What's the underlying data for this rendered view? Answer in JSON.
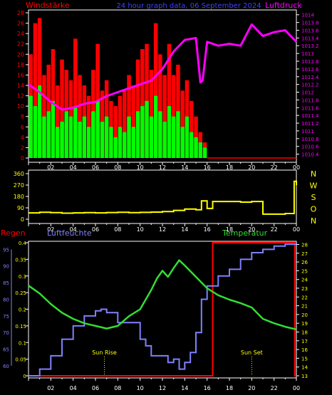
{
  "header": {
    "left": "Windstärke",
    "center": "24 hour graph data, 06 September 2024",
    "right": "Luftdruck"
  },
  "colors": {
    "wind_avg": "#00ff00",
    "wind_gust": "#ff0000",
    "pressure": "#ff00ff",
    "direction": "#ffff00",
    "rain": "#ff0000",
    "humidity": "#8080ff",
    "temperature": "#33dd33",
    "frame": "#ffffff",
    "compass": "#ffff00"
  },
  "x_ticks": [
    "02",
    "04",
    "06",
    "08",
    "10",
    "12",
    "14",
    "16",
    "18",
    "20",
    "22",
    "00"
  ],
  "chart_data": [
    {
      "type": "bar",
      "id": "wind_pressure",
      "title": "24 hour graph data, 06 September 2024",
      "ylabel_left": "Windstärke",
      "ylabel_right": "Luftdruck",
      "x_ticks": [
        "02",
        "04",
        "06",
        "08",
        "10",
        "12",
        "14",
        "16",
        "18",
        "20",
        "22",
        "00"
      ],
      "y_left_ticks": [
        "0",
        "2",
        "4",
        "6",
        "8",
        "10",
        "12",
        "14",
        "16",
        "18",
        "20",
        "22",
        "24",
        "26",
        "28"
      ],
      "ylim_left": [
        0,
        28
      ],
      "y_right_ticks": [
        "1010.4",
        "1010.6",
        "1010.8",
        "1011",
        "1011.2",
        "1011.4",
        "1011.6",
        "1011.8",
        "1012",
        "1012.2",
        "1012.4",
        "1012.6",
        "1012.8",
        "1013",
        "1013.2",
        "1013.4",
        "1013.6",
        "1013.8",
        "1014"
      ],
      "ylim_right": [
        1010.3,
        1014.05
      ],
      "series": [
        {
          "name": "Windstärke",
          "kind": "wind_avg",
          "x": [
            0.2,
            0.6,
            1.0,
            1.4,
            1.8,
            2.2,
            2.6,
            3.0,
            3.4,
            3.8,
            4.2,
            4.6,
            5.0,
            5.4,
            5.8,
            6.2,
            6.6,
            7.0,
            7.4,
            7.8,
            8.2,
            8.6,
            9.0,
            9.4,
            9.8,
            10.2,
            10.6,
            11.0,
            11.4,
            11.8,
            12.2,
            12.6,
            13.0,
            13.4,
            13.8,
            14.2,
            14.6,
            15.0,
            15.4,
            15.8
          ],
          "values": [
            12,
            10,
            14,
            8,
            9,
            11,
            6,
            7,
            9,
            8,
            10,
            7,
            8,
            6,
            9,
            11,
            7,
            8,
            6,
            4,
            6,
            5,
            8,
            6,
            9,
            10,
            11,
            8,
            12,
            9,
            7,
            10,
            8,
            9,
            6,
            8,
            5,
            4,
            3,
            2
          ]
        },
        {
          "name": "Böen",
          "kind": "wind_gust",
          "x": [
            0.2,
            0.6,
            1.0,
            1.4,
            1.8,
            2.2,
            2.6,
            3.0,
            3.4,
            3.8,
            4.2,
            4.6,
            5.0,
            5.4,
            5.8,
            6.2,
            6.6,
            7.0,
            7.4,
            7.8,
            8.2,
            8.6,
            9.0,
            9.4,
            9.8,
            10.2,
            10.6,
            11.0,
            11.4,
            11.8,
            12.2,
            12.6,
            13.0,
            13.4,
            13.8,
            14.2,
            14.6,
            15.0,
            15.4,
            15.8
          ],
          "values": [
            20,
            26,
            27,
            16,
            18,
            21,
            14,
            19,
            17,
            15,
            23,
            16,
            14,
            12,
            17,
            22,
            13,
            15,
            11,
            10,
            12,
            13,
            16,
            14,
            19,
            21,
            22,
            17,
            26,
            20,
            16,
            22,
            16,
            18,
            13,
            15,
            11,
            8,
            5,
            3
          ]
        },
        {
          "name": "Luftdruck",
          "kind": "pressure",
          "x": [
            0,
            1,
            2,
            3,
            4,
            5,
            6,
            7,
            8,
            9,
            10,
            11,
            12,
            13,
            14,
            15,
            15.4,
            15.6,
            16,
            17,
            18,
            19,
            20,
            21,
            22,
            23,
            24
          ],
          "values": [
            1012.2,
            1012.0,
            1011.75,
            1011.55,
            1011.6,
            1011.7,
            1011.75,
            1011.9,
            1012.0,
            1012.1,
            1012.2,
            1012.3,
            1012.6,
            1013.05,
            1013.35,
            1013.4,
            1012.25,
            1012.3,
            1013.3,
            1013.2,
            1013.25,
            1013.2,
            1013.75,
            1013.45,
            1013.55,
            1013.6,
            1013.3
          ]
        }
      ]
    },
    {
      "type": "line",
      "id": "wind_direction",
      "x_ticks": [
        "02",
        "04",
        "06",
        "08",
        "10",
        "12",
        "14",
        "16",
        "18",
        "20",
        "22",
        "00"
      ],
      "y_ticks": [
        "0",
        "90",
        "180",
        "270",
        "360"
      ],
      "ylim": [
        0,
        360
      ],
      "compass_labels": [
        "N",
        "W",
        "S",
        "O",
        "N"
      ],
      "series": [
        {
          "name": "Windrichtung",
          "kind": "direction",
          "x": [
            0,
            1,
            2,
            3,
            4,
            5,
            6,
            7,
            8,
            9,
            10,
            11,
            12,
            13,
            14,
            15,
            15.5,
            16,
            16.5,
            17,
            18,
            19,
            20,
            21,
            22,
            23,
            23.8,
            24
          ],
          "values": [
            50,
            55,
            52,
            48,
            50,
            52,
            50,
            53,
            55,
            52,
            54,
            56,
            60,
            70,
            80,
            75,
            145,
            85,
            140,
            140,
            140,
            135,
            140,
            40,
            40,
            45,
            300,
            270
          ]
        }
      ]
    },
    {
      "type": "line",
      "id": "rain_humidity_temp",
      "title_left": "Regen",
      "title_mid": "Luftfeuchte",
      "title_right": "Temperatur",
      "x_ticks": [
        "02",
        "04",
        "06",
        "08",
        "10",
        "12",
        "14",
        "16",
        "18",
        "20",
        "22",
        "00"
      ],
      "y_rain_ticks": [
        "0",
        "0.05",
        "0.1",
        "0.15",
        "0.2",
        "0.25",
        "0.3",
        "0.35",
        "0.4"
      ],
      "ylim_rain": [
        0,
        0.4
      ],
      "y_hum_ticks": [
        "60",
        "65",
        "70",
        "75",
        "80",
        "85",
        "90",
        "95"
      ],
      "ylim_hum": [
        57,
        97
      ],
      "y_temp_ticks": [
        "13",
        "14",
        "15",
        "16",
        "17",
        "18",
        "19",
        "20",
        "21",
        "22",
        "23",
        "24",
        "25",
        "26",
        "27",
        "28"
      ],
      "ylim_temp": [
        13,
        28.2
      ],
      "annotations": [
        {
          "label": "Sun Rise",
          "x": 6.8
        },
        {
          "label": "Sun Set",
          "x": 20.0
        }
      ],
      "series": [
        {
          "name": "Regen",
          "kind": "rain",
          "x": [
            0,
            16.5,
            16.5,
            23.85,
            23.85,
            24
          ],
          "values": [
            0,
            0,
            0.4,
            0.4,
            0,
            0
          ]
        },
        {
          "name": "Luftfeuchte",
          "kind": "humidity",
          "x": [
            0,
            1,
            2,
            3,
            4,
            5,
            6,
            6.5,
            7,
            8,
            9,
            10,
            10.5,
            11,
            12,
            12.5,
            13,
            13.5,
            14,
            14.5,
            15,
            15.5,
            16,
            17,
            18,
            19,
            20,
            21,
            22,
            23,
            24
          ],
          "values": [
            57,
            59,
            63,
            68,
            72,
            75,
            76.5,
            77,
            76,
            73,
            73,
            68,
            66,
            63,
            63,
            61,
            62,
            59,
            61,
            64,
            70,
            80,
            84,
            87,
            89,
            92,
            94,
            95,
            96,
            96.5,
            97
          ]
        },
        {
          "name": "Temperatur",
          "kind": "temperature",
          "x": [
            0,
            1,
            2,
            3,
            4,
            5,
            6,
            7,
            8,
            9,
            10,
            11,
            11.5,
            12,
            12.5,
            13,
            13.5,
            14,
            15,
            16,
            17,
            18,
            19,
            20,
            21,
            22,
            23,
            24
          ],
          "values": [
            23.3,
            22.4,
            21.2,
            20.2,
            19.5,
            19.0,
            18.7,
            18.4,
            18.7,
            19.8,
            20.6,
            22.8,
            24.1,
            25.0,
            24.3,
            25.3,
            26.2,
            25.6,
            24.3,
            23.0,
            22.2,
            21.7,
            21.3,
            20.8,
            19.5,
            19.0,
            18.6,
            18.3
          ]
        }
      ]
    }
  ]
}
